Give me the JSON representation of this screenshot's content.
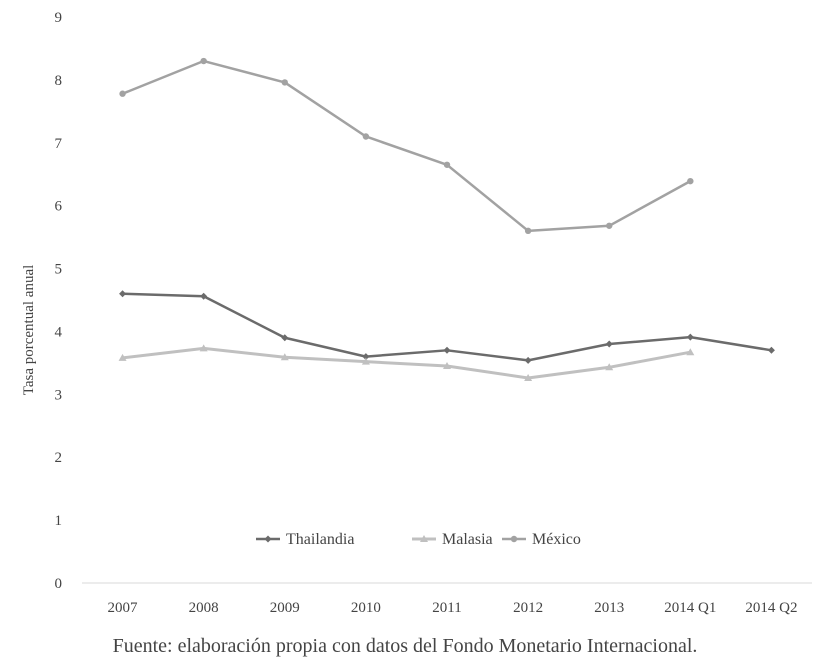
{
  "chart_data": {
    "type": "line",
    "categories": [
      "2007",
      "2008",
      "2009",
      "2010",
      "2011",
      "2012",
      "2013",
      "2014 Q1",
      "2014 Q2"
    ],
    "series": [
      {
        "name": "Thailandia",
        "color": "#6b6b6b",
        "marker": "diamond",
        "values": [
          4.6,
          4.56,
          3.9,
          3.6,
          3.7,
          3.54,
          3.8,
          3.91,
          3.7
        ]
      },
      {
        "name": "Malasia",
        "color": "#c0c0c0",
        "marker": "triangle",
        "values": [
          3.58,
          3.73,
          3.59,
          3.52,
          3.45,
          3.26,
          3.43,
          3.67,
          null
        ]
      },
      {
        "name": "México",
        "color": "#a2a2a2",
        "marker": "circle",
        "values": [
          7.78,
          8.3,
          7.96,
          7.1,
          6.65,
          5.6,
          5.68,
          6.39,
          null
        ]
      }
    ],
    "ylabel": "Tasa porcentual anual",
    "xlabel": "",
    "ylim": [
      0,
      9
    ],
    "yticks": [
      "0",
      "1",
      "2",
      "3",
      "4",
      "5",
      "6",
      "7",
      "8",
      "9"
    ],
    "grid": false,
    "legend_position": "bottom-center"
  },
  "caption": "Fuente: elaboración propia con datos del Fondo Monetario Internacional."
}
